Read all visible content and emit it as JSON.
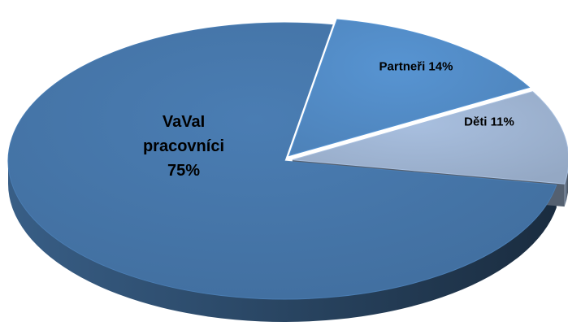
{
  "chart_data": {
    "type": "pie",
    "categories": [
      "VaVaI pracovníci",
      "Partneři",
      "Děti"
    ],
    "values": [
      75,
      14,
      11
    ],
    "value_labels": [
      "75%",
      "14%",
      "11%"
    ],
    "colors": [
      "#4a7db3",
      "#5794d2",
      "#a8bfdf"
    ]
  }
}
